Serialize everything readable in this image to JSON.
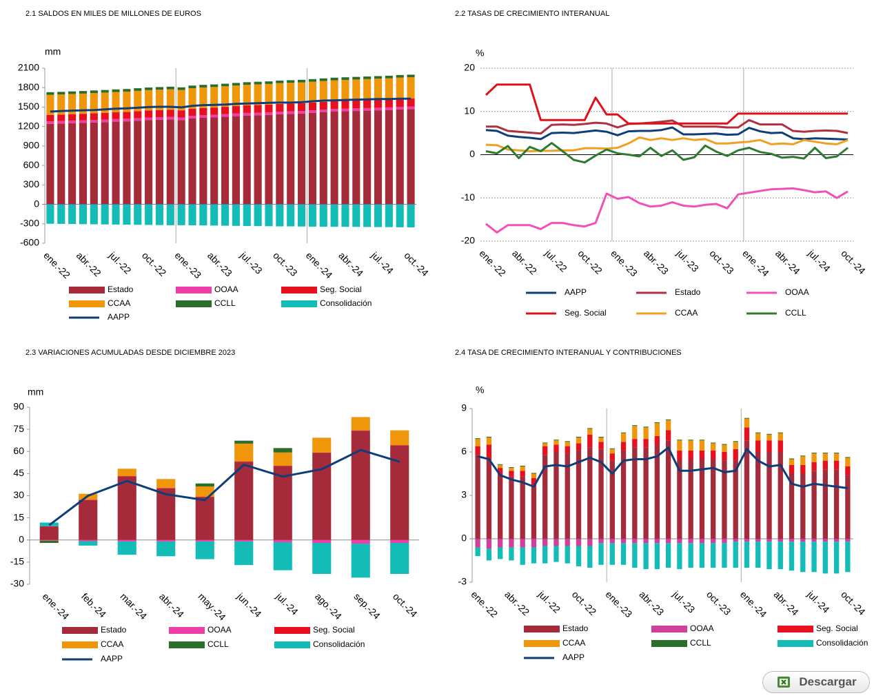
{
  "chart_data": [
    {
      "type": "bar",
      "title": "2.1 SALDOS EN MILES DE MILLONES DE EUROS",
      "ylabel": "mm",
      "categories": [
        "ene.-22",
        null,
        null,
        "abr.-22",
        null,
        null,
        "jul.-22",
        null,
        null,
        "oct.-22",
        null,
        null,
        "ene.-23",
        null,
        null,
        "abr.-23",
        null,
        null,
        "jul.-23",
        null,
        null,
        "oct.-23",
        null,
        null,
        "ene.-24",
        null,
        null,
        "abr.-24",
        null,
        null,
        "jul.-24",
        null,
        null,
        "oct.-24"
      ],
      "ylim": [
        -600,
        2100
      ],
      "yticks": [
        -600,
        -300,
        0,
        300,
        600,
        900,
        1200,
        1500,
        1800,
        2100
      ],
      "grid": false,
      "series": [
        {
          "name": "Estado",
          "color": "#a52a3a",
          "values": [
            1240,
            1245,
            1250,
            1255,
            1262,
            1268,
            1275,
            1280,
            1290,
            1300,
            1305,
            1310,
            1300,
            1325,
            1335,
            1340,
            1350,
            1360,
            1370,
            1375,
            1380,
            1390,
            1395,
            1400,
            1410,
            1420,
            1430,
            1435,
            1440,
            1445,
            1450,
            1455,
            1465,
            1470
          ]
        },
        {
          "name": "OOAA",
          "color": "#ee3fa8",
          "values": [
            40,
            40,
            40,
            40,
            40,
            40,
            40,
            40,
            40,
            40,
            40,
            40,
            40,
            40,
            40,
            40,
            40,
            40,
            40,
            40,
            40,
            40,
            40,
            40,
            40,
            40,
            40,
            40,
            40,
            40,
            40,
            40,
            40,
            40
          ]
        },
        {
          "name": "Seg. Social",
          "color": "#e8101e",
          "values": [
            100,
            100,
            101,
            102,
            103,
            104,
            105,
            106,
            107,
            108,
            109,
            110,
            110,
            111,
            112,
            113,
            114,
            115,
            116,
            117,
            118,
            119,
            120,
            121,
            121,
            122,
            122,
            123,
            123,
            124,
            124,
            125,
            125,
            125
          ]
        },
        {
          "name": "CCAA",
          "color": "#f0960a",
          "values": [
            310,
            310,
            311,
            311,
            312,
            312,
            313,
            313,
            314,
            314,
            315,
            315,
            315,
            316,
            316,
            317,
            317,
            318,
            318,
            319,
            319,
            320,
            320,
            320,
            321,
            321,
            322,
            322,
            323,
            323,
            324,
            324,
            325,
            325
          ]
        },
        {
          "name": "CCLL",
          "color": "#2a6e2a",
          "values": [
            40,
            40,
            40,
            40,
            40,
            40,
            40,
            40,
            40,
            40,
            40,
            40,
            40,
            40,
            40,
            40,
            40,
            40,
            40,
            40,
            40,
            40,
            40,
            40,
            40,
            40,
            40,
            40,
            40,
            40,
            40,
            40,
            40,
            40
          ]
        },
        {
          "name": "Consolidación",
          "color": "#14bcb8",
          "values": [
            -300,
            -302,
            -304,
            -306,
            -308,
            -310,
            -312,
            -314,
            -316,
            -318,
            -320,
            -322,
            -322,
            -324,
            -326,
            -328,
            -330,
            -332,
            -334,
            -336,
            -338,
            -340,
            -340,
            -342,
            -344,
            -345,
            -346,
            -347,
            -348,
            -350,
            -351,
            -352,
            -354,
            -355
          ]
        },
        {
          "name": "AAPP",
          "color": "#0d3e7a",
          "type": "line",
          "values": [
            1430,
            1440,
            1445,
            1450,
            1455,
            1465,
            1475,
            1480,
            1490,
            1500,
            1505,
            1505,
            1495,
            1520,
            1530,
            1535,
            1540,
            1550,
            1555,
            1560,
            1565,
            1570,
            1570,
            1575,
            1590,
            1600,
            1605,
            1610,
            1615,
            1620,
            1625,
            1625,
            1630,
            1630
          ]
        }
      ]
    },
    {
      "type": "line",
      "title": "2.2 TASAS DE CRECIMIENTO INTERANUAL",
      "ylabel": "%",
      "categories": [
        "ene.-22",
        null,
        null,
        "abr.-22",
        null,
        null,
        "jul.-22",
        null,
        null,
        "oct.-22",
        null,
        null,
        "ene.-23",
        null,
        null,
        "abr.-23",
        null,
        null,
        "jul.-23",
        null,
        null,
        "oct.-23",
        null,
        null,
        "ene.-24",
        null,
        null,
        "abr.-24",
        null,
        null,
        "jul.-24",
        null,
        null,
        "oct.-24"
      ],
      "ylim": [
        -20,
        20
      ],
      "yticks": [
        -20,
        -10,
        0,
        10,
        20
      ],
      "grid": true,
      "series": [
        {
          "name": "AAPP",
          "color": "#0d3e7a",
          "values": [
            5.7,
            5.5,
            4.4,
            4.1,
            3.9,
            3.6,
            5.0,
            5.1,
            5.0,
            5.3,
            5.6,
            5.3,
            4.5,
            5.4,
            5.5,
            5.5,
            5.7,
            6.3,
            4.7,
            4.7,
            4.8,
            4.9,
            4.6,
            4.7,
            6.2,
            5.4,
            5.0,
            5.1,
            3.8,
            3.6,
            3.8,
            3.7,
            3.6,
            3.5
          ]
        },
        {
          "name": "Estado",
          "color": "#b03040",
          "values": [
            6.5,
            6.5,
            5.5,
            5.3,
            5.1,
            4.9,
            6.9,
            7.0,
            6.9,
            7.1,
            7.4,
            7.2,
            6.3,
            7.1,
            7.2,
            7.4,
            7.6,
            7.9,
            6.5,
            6.5,
            6.5,
            6.5,
            6.3,
            6.3,
            8.0,
            7.0,
            7.0,
            7.0,
            5.5,
            5.3,
            5.5,
            5.6,
            5.5,
            5.0
          ]
        },
        {
          "name": "OOAA",
          "color": "#f050b8",
          "values": [
            -16,
            -18,
            -16.3,
            -16.3,
            -16.3,
            -17.2,
            -15.8,
            -15.8,
            -16.3,
            -16.6,
            -15.8,
            -9.0,
            -10.2,
            -9.8,
            -11.2,
            -12,
            -11.8,
            -11,
            -11.8,
            -12,
            -11.6,
            -11.4,
            -12.4,
            -9.2,
            -8.8,
            -8.4,
            -8,
            -7.9,
            -7.8,
            -8.2,
            -8.7,
            -8.5,
            -10,
            -8.5
          ]
        },
        {
          "name": "Seg. Social",
          "color": "#e0101a",
          "values": [
            13.8,
            16.2,
            16.2,
            16.2,
            16.2,
            8.0,
            8.0,
            8.0,
            8.0,
            8.0,
            13.2,
            9.3,
            9.3,
            7.2,
            7.2,
            7.2,
            7.2,
            7.2,
            7.2,
            7.2,
            7.2,
            7.2,
            7.2,
            9.5,
            9.5,
            9.5,
            9.5,
            9.5,
            9.5,
            9.5,
            9.5,
            9.5,
            9.5,
            9.5
          ]
        },
        {
          "name": "CCAA",
          "color": "#f0a020",
          "values": [
            2.3,
            2.2,
            1.2,
            1.0,
            0.8,
            0.9,
            0.9,
            1.0,
            1.0,
            1.5,
            1.5,
            1.4,
            1.6,
            2.6,
            4.0,
            3.4,
            3.8,
            3.4,
            3.8,
            3.4,
            3.6,
            2.6,
            2.6,
            2.8,
            3.0,
            3.4,
            2.4,
            2.6,
            2.4,
            3.4,
            3.0,
            2.6,
            2.4,
            3.4
          ]
        },
        {
          "name": "CCLL",
          "color": "#2e7a30",
          "values": [
            0.8,
            0.3,
            2.0,
            -0.8,
            1.8,
            0.8,
            2.7,
            0.8,
            -1.2,
            -1.8,
            -0.2,
            1.2,
            0.3,
            0.0,
            -0.4,
            1.6,
            -0.3,
            1.0,
            -1.2,
            -0.6,
            2.1,
            0.7,
            -0.3,
            1.0,
            1.6,
            0.6,
            0.2,
            -0.7,
            -0.5,
            -0.9,
            1.6,
            -0.8,
            -0.4,
            1.6
          ]
        }
      ]
    },
    {
      "type": "bar",
      "title": "2.3 VARIACIONES ACUMULADAS DESDE DICIEMBRE 2023",
      "ylabel": "mm",
      "categories": [
        "ene.-24",
        "feb.-24",
        "mar.-24",
        "abr.-24",
        "may.-24",
        "jun.-24",
        "jul.-24",
        "ago.-24",
        "sep.-24",
        "oct.-24"
      ],
      "ylim": [
        -30,
        90
      ],
      "yticks": [
        -30,
        -15,
        0,
        15,
        30,
        45,
        60,
        75,
        90
      ],
      "grid": false,
      "series": [
        {
          "name": "Estado",
          "color": "#a52a3a",
          "values": [
            9,
            27,
            43,
            35,
            29,
            53,
            50,
            59,
            74,
            64
          ]
        },
        {
          "name": "OOAA",
          "color": "#ee3fa8",
          "values": [
            -0.5,
            -0.8,
            -1,
            -1,
            -1,
            -1,
            -1.5,
            -2,
            -2.5,
            -2
          ]
        },
        {
          "name": "Seg. Social",
          "color": "#e8101e",
          "values": [
            0.3,
            0.3,
            0.3,
            0.3,
            0.3,
            0.3,
            0.3,
            0.3,
            0.3,
            0.3
          ]
        },
        {
          "name": "CCAA",
          "color": "#f0960a",
          "values": [
            0,
            4,
            5,
            6,
            7,
            12,
            9,
            10,
            9,
            10
          ]
        },
        {
          "name": "CCLL",
          "color": "#2a6e2a",
          "values": [
            -1.5,
            0,
            0,
            0,
            2,
            2,
            3,
            0,
            0,
            0
          ]
        },
        {
          "name": "Consolidación",
          "color": "#14bcb8",
          "values": [
            2.5,
            -3,
            -9,
            -10,
            -12,
            -16,
            -19,
            -21,
            -23,
            -21
          ]
        },
        {
          "name": "AAPP",
          "color": "#0d3e7a",
          "type": "line",
          "values": [
            10,
            30,
            40,
            31,
            27,
            51,
            43,
            48,
            61,
            53
          ]
        }
      ]
    },
    {
      "type": "bar",
      "title": "2.4 TASA DE CRECIMIENTO INTERANUAL Y CONTRIBUCIONES",
      "ylabel": "%",
      "categories": [
        "ene.-22",
        null,
        null,
        "abr.-22",
        null,
        null,
        "jul.-22",
        null,
        null,
        "oct.-22",
        null,
        null,
        "ene.-23",
        null,
        null,
        "abr.-23",
        null,
        null,
        "jul.-23",
        null,
        null,
        "oct.-23",
        null,
        null,
        "ene.-24",
        null,
        null,
        "abr.-24",
        null,
        null,
        "jul.-24",
        null,
        null,
        "oct.-24"
      ],
      "ylim": [
        -3,
        9
      ],
      "yticks": [
        -3,
        0,
        3,
        6,
        9
      ],
      "grid": false,
      "series": [
        {
          "name": "Estado",
          "color": "#a52a3a",
          "values": [
            5.8,
            5.5,
            4.5,
            4.3,
            4.3,
            3.6,
            5.8,
            6.0,
            5.9,
            6.1,
            6.3,
            6.2,
            5.4,
            6.1,
            6.3,
            6.3,
            6.5,
            6.8,
            5.5,
            5.5,
            5.5,
            5.5,
            5.4,
            5.4,
            6.8,
            6.0,
            6.0,
            6.0,
            4.5,
            4.5,
            4.7,
            4.8,
            4.8,
            4.4
          ]
        },
        {
          "name": "OOAA",
          "color": "#d0409a",
          "values": [
            -0.6,
            -0.7,
            -0.6,
            -0.6,
            -0.6,
            -0.6,
            -0.5,
            -0.5,
            -0.5,
            -0.5,
            -0.5,
            -0.3,
            -0.3,
            -0.3,
            -0.3,
            -0.3,
            -0.3,
            -0.3,
            -0.3,
            -0.3,
            -0.3,
            -0.3,
            -0.3,
            -0.2,
            -0.2,
            -0.2,
            -0.2,
            -0.2,
            -0.2,
            -0.2,
            -0.2,
            -0.2,
            -0.2,
            -0.2
          ]
        },
        {
          "name": "Seg. Social",
          "color": "#e8101e",
          "values": [
            0.6,
            1.0,
            0.4,
            0.4,
            0.4,
            0.6,
            0.6,
            0.5,
            0.5,
            0.5,
            0.9,
            0.5,
            0.5,
            0.6,
            0.6,
            0.6,
            0.6,
            0.7,
            0.6,
            0.6,
            0.6,
            0.6,
            0.6,
            0.8,
            0.9,
            0.8,
            0.8,
            0.8,
            0.6,
            0.6,
            0.6,
            0.6,
            0.6,
            0.6
          ]
        },
        {
          "name": "CCAA",
          "color": "#f0960a",
          "values": [
            0.5,
            0.5,
            0.2,
            0.2,
            0.3,
            0.3,
            0.2,
            0.3,
            0.3,
            0.4,
            0.4,
            0.3,
            0.3,
            0.6,
            0.9,
            0.8,
            0.9,
            0.7,
            0.7,
            0.7,
            0.7,
            0.5,
            0.5,
            0.5,
            0.6,
            0.5,
            0.4,
            0.5,
            0.4,
            0.6,
            0.6,
            0.5,
            0.5,
            0.6
          ]
        },
        {
          "name": "CCLL",
          "color": "#2a6e2a",
          "values": [
            0.05,
            0.05,
            0.05,
            0.05,
            0.05,
            0.05,
            0.05,
            0.05,
            0.05,
            0.05,
            0.05,
            0.05,
            0.05,
            0.05,
            0.05,
            0.05,
            0.05,
            0.05,
            0.05,
            0.05,
            0.05,
            0.05,
            0.05,
            0.05,
            0.05,
            0.05,
            0.05,
            0.05,
            0.05,
            0.05,
            0.05,
            0.05,
            0.05,
            0.05
          ]
        },
        {
          "name": "Consolidación",
          "color": "#14bcb8",
          "values": [
            -0.6,
            -0.8,
            -0.8,
            -0.9,
            -1.2,
            -1.1,
            -1.2,
            -1.1,
            -1.2,
            -1.4,
            -1.5,
            -1.5,
            -1.5,
            -1.5,
            -1.7,
            -1.8,
            -1.8,
            -1.7,
            -1.8,
            -1.7,
            -1.7,
            -1.7,
            -1.7,
            -1.8,
            -1.8,
            -1.8,
            -1.9,
            -1.9,
            -2.0,
            -2.1,
            -2.1,
            -2.2,
            -2.2,
            -2.1
          ]
        },
        {
          "name": "AAPP",
          "color": "#0d3e7a",
          "type": "line",
          "values": [
            5.7,
            5.5,
            4.4,
            4.1,
            3.9,
            3.6,
            5.0,
            5.1,
            5.0,
            5.3,
            5.6,
            5.3,
            4.5,
            5.4,
            5.5,
            5.5,
            5.7,
            6.3,
            4.7,
            4.7,
            4.8,
            4.9,
            4.6,
            4.7,
            6.2,
            5.4,
            5.0,
            5.1,
            3.8,
            3.6,
            3.8,
            3.7,
            3.6,
            3.5
          ]
        }
      ]
    }
  ],
  "download_button": {
    "label": "Descargar"
  }
}
